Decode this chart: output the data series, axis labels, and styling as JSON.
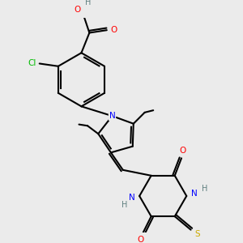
{
  "bg_color": "#ebebeb",
  "bond_color": "#000000",
  "atom_colors": {
    "O": "#ff0000",
    "N": "#0000ff",
    "Cl": "#00bb00",
    "S": "#ccaa00",
    "H": "#608080",
    "C": "#000000"
  },
  "figsize": [
    3.0,
    3.0
  ],
  "dpi": 100
}
